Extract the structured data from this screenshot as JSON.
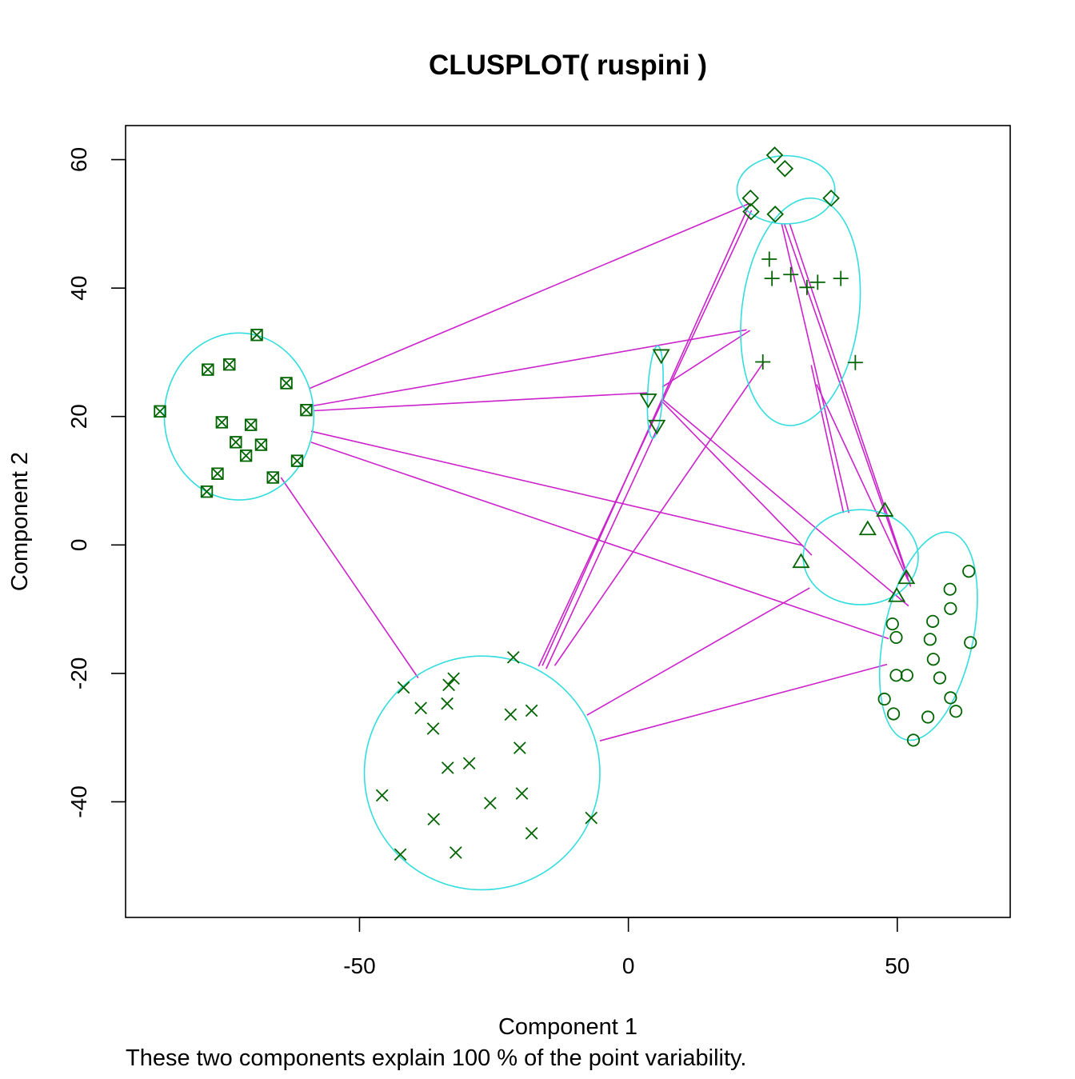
{
  "chart_data": {
    "type": "scatter",
    "title": "CLUSPLOT( ruspini )",
    "xlabel": "Component 1",
    "ylabel": "Component 2",
    "subtitle": "These two components explain 100 % of the point variability.",
    "xlim": [
      -93.5,
      71
    ],
    "ylim": [
      -58,
      65.3
    ],
    "xticks": [
      -50,
      0,
      50
    ],
    "xtick_labels": [
      "-50",
      "0",
      "50"
    ],
    "yticks": [
      -40,
      -20,
      0,
      20,
      40,
      60
    ],
    "ytick_labels": [
      "-40",
      "-20",
      "0",
      "20",
      "40",
      "60"
    ],
    "grid": false,
    "legend": "none",
    "colors": {
      "points": "#006400",
      "ellipses": "#33dddd",
      "lines": "#cc22cc",
      "frame": "#000000"
    },
    "clusters": [
      {
        "id": 1,
        "symbol": "box-x",
        "ellipse": {
          "cx": -72.4,
          "cy": 20,
          "rx": 13.9,
          "ry": 13,
          "angle": 0
        },
        "points": [
          [
            -87.1,
            20.8
          ],
          [
            -69.1,
            32.7
          ],
          [
            -63.6,
            25.2
          ],
          [
            -78.2,
            27.3
          ],
          [
            -74.2,
            28.1
          ],
          [
            -59.9,
            21.0
          ],
          [
            -75.6,
            19.1
          ],
          [
            -70.2,
            18.7
          ],
          [
            -73.0,
            16.0
          ],
          [
            -68.3,
            15.6
          ],
          [
            -71.1,
            13.9
          ],
          [
            -61.6,
            13.1
          ],
          [
            -76.4,
            11.1
          ],
          [
            -66.1,
            10.5
          ],
          [
            -78.4,
            8.3
          ]
        ]
      },
      {
        "id": 2,
        "symbol": "x",
        "ellipse": {
          "cx": -27.2,
          "cy": -35.5,
          "rx": 21.9,
          "ry": 18.2,
          "angle": 0
        },
        "points": [
          [
            -21.4,
            -17.5
          ],
          [
            -41.8,
            -22.2
          ],
          [
            -32.5,
            -20.8
          ],
          [
            -33.4,
            -21.8
          ],
          [
            -38.6,
            -25.4
          ],
          [
            -33.7,
            -24.7
          ],
          [
            -21.9,
            -26.4
          ],
          [
            -18.0,
            -25.8
          ],
          [
            -36.3,
            -28.6
          ],
          [
            -20.2,
            -31.6
          ],
          [
            -29.6,
            -34.0
          ],
          [
            -33.6,
            -34.7
          ],
          [
            -45.8,
            -39.0
          ],
          [
            -19.8,
            -38.7
          ],
          [
            -25.7,
            -40.2
          ],
          [
            -36.2,
            -42.7
          ],
          [
            -6.9,
            -42.5
          ],
          [
            -18.0,
            -44.9
          ],
          [
            -42.4,
            -48.2
          ],
          [
            -32.1,
            -47.9
          ]
        ]
      },
      {
        "id": 3,
        "symbol": "triangle-down",
        "ellipse": {
          "cx": 5.0,
          "cy": 23.8,
          "rx": 1.4,
          "ry": 7.2,
          "angle": 3
        },
        "points": [
          [
            6.1,
            29.5
          ],
          [
            3.7,
            22.6
          ],
          [
            5.3,
            18.5
          ]
        ]
      },
      {
        "id": 4,
        "symbol": "plus",
        "ellipse": {
          "cx": 32.0,
          "cy": 36.3,
          "rx": 10.9,
          "ry": 17.8,
          "angle": 7
        },
        "points": [
          [
            26.2,
            44.5
          ],
          [
            26.7,
            41.5
          ],
          [
            30.2,
            42.1
          ],
          [
            33.2,
            40.1
          ],
          [
            35.2,
            40.9
          ],
          [
            39.5,
            41.5
          ],
          [
            25.0,
            28.5
          ],
          [
            42.2,
            28.4
          ]
        ]
      },
      {
        "id": 5,
        "symbol": "diamond",
        "ellipse": {
          "cx": 29.3,
          "cy": 55.3,
          "rx": 9.1,
          "ry": 5.3,
          "angle": 0
        },
        "points": [
          [
            27.2,
            60.7
          ],
          [
            29.1,
            58.6
          ],
          [
            22.7,
            54.0
          ],
          [
            37.7,
            54.0
          ],
          [
            22.8,
            51.9
          ],
          [
            27.3,
            51.5
          ]
        ]
      },
      {
        "id": 6,
        "symbol": "triangle",
        "ellipse": {
          "cx": 43.2,
          "cy": -1.9,
          "rx": 10.7,
          "ry": 7.4,
          "angle": 0
        },
        "points": [
          [
            47.7,
            5.4
          ],
          [
            44.5,
            2.5
          ],
          [
            32.1,
            -2.6
          ],
          [
            51.7,
            -5.1
          ],
          [
            49.9,
            -7.9
          ]
        ]
      },
      {
        "id": 7,
        "symbol": "circle",
        "ellipse": {
          "cx": 55.8,
          "cy": -14.2,
          "rx": 8.3,
          "ry": 16.5,
          "angle": 12
        },
        "points": [
          [
            63.3,
            -4.1
          ],
          [
            59.8,
            -6.9
          ],
          [
            56.6,
            -11.9
          ],
          [
            59.9,
            -9.9
          ],
          [
            49.1,
            -12.3
          ],
          [
            49.8,
            -14.4
          ],
          [
            56.1,
            -14.7
          ],
          [
            63.6,
            -15.2
          ],
          [
            56.7,
            -17.8
          ],
          [
            49.8,
            -20.3
          ],
          [
            51.8,
            -20.3
          ],
          [
            57.9,
            -20.7
          ],
          [
            47.6,
            -24.0
          ],
          [
            59.9,
            -23.8
          ],
          [
            49.3,
            -26.3
          ],
          [
            60.9,
            -25.9
          ],
          [
            55.7,
            -26.8
          ],
          [
            53.0,
            -30.4
          ]
        ]
      }
    ],
    "connecting_lines": [
      [
        [
          -59.2,
          24.4
        ],
        [
          22.6,
          53.2
        ]
      ],
      [
        [
          -59.1,
          21.6
        ],
        [
          22.0,
          33.5
        ]
      ],
      [
        [
          -58.5,
          20.9
        ],
        [
          3.7,
          23.7
        ]
      ],
      [
        [
          -59.0,
          17.7
        ],
        [
          32.5,
          -0.1
        ]
      ],
      [
        [
          -59.0,
          16.0
        ],
        [
          48.4,
          -14.6
        ]
      ],
      [
        [
          -64.6,
          10.5
        ],
        [
          -39.1,
          -20.7
        ]
      ],
      [
        [
          -16.7,
          -18.9
        ],
        [
          22.9,
          52.1
        ]
      ],
      [
        [
          -16.0,
          -18.8
        ],
        [
          22.6,
          53.2
        ]
      ],
      [
        [
          -15.3,
          -19.3
        ],
        [
          5.7,
          18.7
        ]
      ],
      [
        [
          -13.7,
          -18.8
        ],
        [
          25.2,
          28.5
        ]
      ],
      [
        [
          -7.7,
          -26.5
        ],
        [
          33.7,
          -6.7
        ]
      ],
      [
        [
          -5.3,
          -30.5
        ],
        [
          48.1,
          -18.6
        ]
      ],
      [
        [
          6.3,
          24.6
        ],
        [
          22.6,
          33.4
        ]
      ],
      [
        [
          6.2,
          22.4
        ],
        [
          34.1,
          -1.6
        ]
      ],
      [
        [
          6.3,
          22.7
        ],
        [
          52.1,
          -9.5
        ]
      ],
      [
        [
          29.0,
          50.0
        ],
        [
          52.5,
          -6.5
        ]
      ],
      [
        [
          30.0,
          50.0
        ],
        [
          52.0,
          -5.0
        ]
      ],
      [
        [
          28.5,
          50.0
        ],
        [
          41.0,
          5.0
        ]
      ],
      [
        [
          35.0,
          25.0
        ],
        [
          52.0,
          -5.5
        ]
      ],
      [
        [
          34.0,
          28.0
        ],
        [
          40.0,
          5.0
        ]
      ]
    ]
  }
}
